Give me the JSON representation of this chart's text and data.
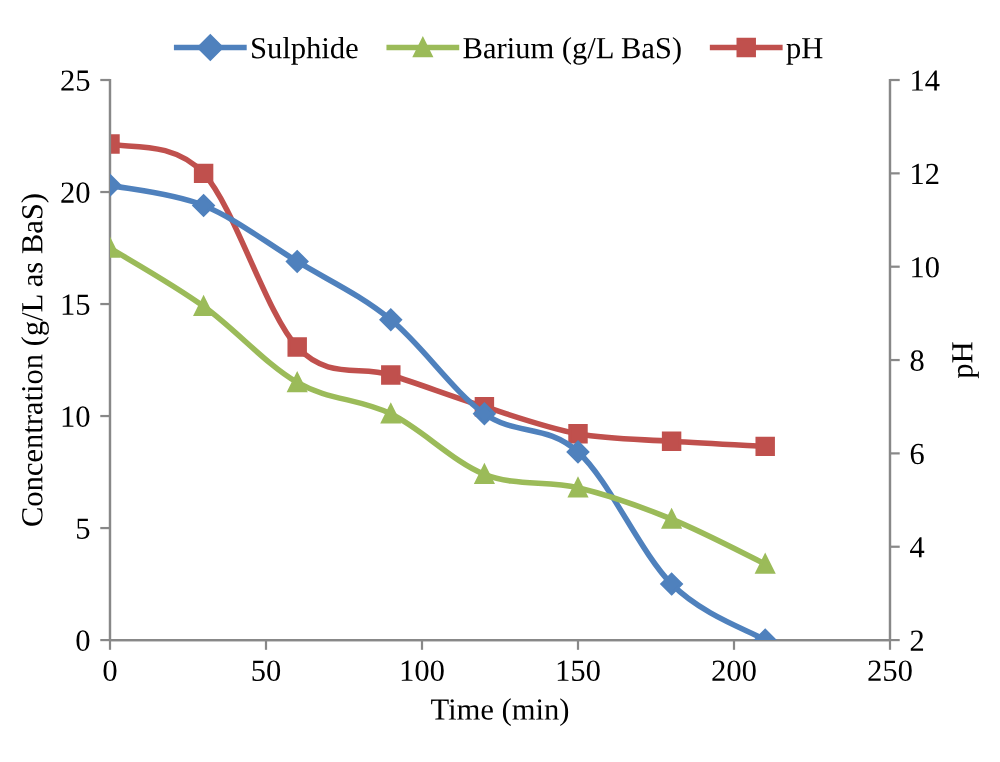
{
  "chart_data": {
    "type": "line",
    "xlabel": "Time (min)",
    "ylabel": "Concentration (g/L as BaS)",
    "y2label": "pH",
    "x": [
      0,
      30,
      60,
      90,
      120,
      150,
      180,
      210
    ],
    "series": [
      {
        "name": "Sulphide",
        "color": "#4f81bd",
        "marker": "diamond",
        "values": [
          20.3,
          19.4,
          16.9,
          14.3,
          10.1,
          8.4,
          2.5,
          0
        ]
      },
      {
        "name": "Barium (g/L BaS)",
        "color": "#9bbb59",
        "marker": "triangle",
        "values": [
          17.5,
          14.9,
          11.5,
          10.1,
          7.4,
          6.8,
          5.4,
          3.4
        ]
      },
      {
        "name": "pH",
        "color": "#c0504d",
        "marker": "square",
        "axis": "y2",
        "values": [
          12.63,
          12.0,
          8.28,
          7.68,
          7.0,
          6.42,
          6.26,
          6.15
        ]
      }
    ],
    "xlim": [
      0,
      250
    ],
    "xticks": [
      0,
      50,
      100,
      150,
      200,
      250
    ],
    "ylim": [
      0,
      25
    ],
    "yticks": [
      0,
      5,
      10,
      15,
      20,
      25
    ],
    "y2lim": [
      2,
      14
    ],
    "y2ticks": [
      2,
      4,
      6,
      8,
      10,
      12,
      14
    ],
    "grid": false,
    "legend": "top",
    "line_style": "solid"
  }
}
